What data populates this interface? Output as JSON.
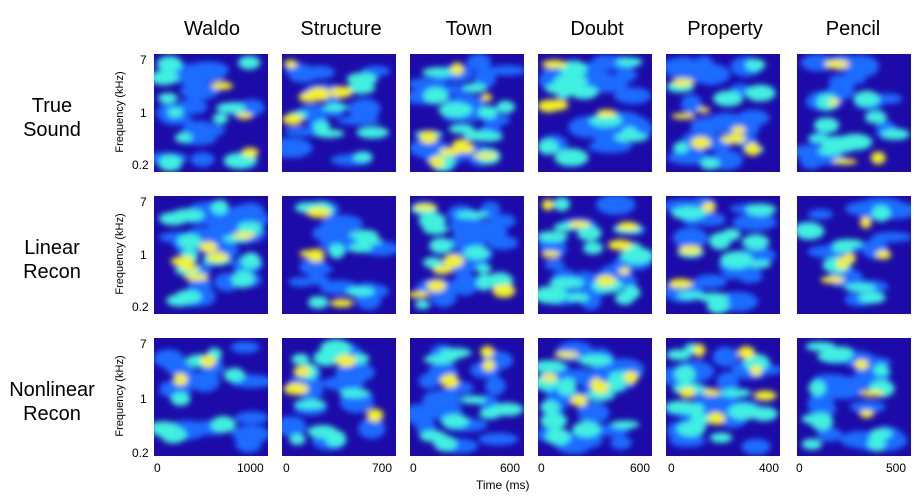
{
  "columns": [
    "Waldo",
    "Structure",
    "Town",
    "Doubt",
    "Property",
    "Pencil"
  ],
  "rows": [
    {
      "label_line1": "True",
      "label_line2": "Sound"
    },
    {
      "label_line1": "Linear",
      "label_line2": "Recon"
    },
    {
      "label_line1": "Nonlinear",
      "label_line2": "Recon"
    }
  ],
  "y_axis": {
    "label": "Frequency (kHz)",
    "ticks": [
      "7",
      "1",
      "0.2"
    ]
  },
  "x_axis": {
    "label": "Time (ms)",
    "ticks": [
      {
        "start": "0",
        "end": "1000"
      },
      {
        "start": "0",
        "end": "700"
      },
      {
        "start": "0",
        "end": "600"
      },
      {
        "start": "0",
        "end": "600"
      },
      {
        "start": "0",
        "end": "400"
      },
      {
        "start": "0",
        "end": "500"
      }
    ]
  },
  "colormap": {
    "background": "#1c0ba8",
    "low": "#1e6cff",
    "mid": "#3ff0e0",
    "high": "#f5f21a",
    "peak": "#e21d10"
  }
}
